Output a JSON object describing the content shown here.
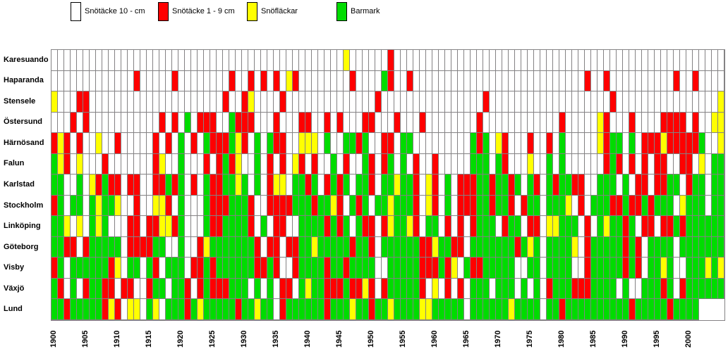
{
  "legend": [
    {
      "label": "Snötäcke 10 -  cm",
      "code": "W",
      "color": "#ffffff"
    },
    {
      "label": "Snötäcke 1 - 9 cm",
      "code": "R",
      "color": "#ff0000"
    },
    {
      "label": "Snöfläckar",
      "code": "Y",
      "color": "#ffff00"
    },
    {
      "label": "Barmark",
      "code": "G",
      "color": "#00dc00"
    }
  ],
  "chart_data": {
    "type": "heatmap",
    "title": "",
    "xlabel": "",
    "ylabel": "",
    "x_start": 1900,
    "x_end": 2005,
    "x_ticks": [
      1900,
      1905,
      1910,
      1915,
      1920,
      1925,
      1930,
      1935,
      1940,
      1945,
      1950,
      1955,
      1960,
      1965,
      1970,
      1975,
      1980,
      1985,
      1990,
      1995,
      2000
    ],
    "grid_color": "#848284",
    "colors": {
      "W": "#ffffff",
      "R": "#ff0000",
      "Y": "#ffff00",
      "G": "#00dc00"
    },
    "value_meaning": {
      "W": "Snötäcke 10 -  cm",
      "R": "Snötäcke 1 - 9 cm",
      "Y": "Snöfläckar",
      "G": "Barmark"
    },
    "categories": [
      "Karesuando",
      "Haparanda",
      "Stensele",
      "Östersund",
      "Härnösand",
      "Falun",
      "Karlstad",
      "Stockholm",
      "Linköping",
      "Göteborg",
      "Visby",
      "Växjö",
      "Lund"
    ],
    "rows": [
      {
        "station": "Karesuando",
        "cells": "WWWWWWWWWWWWWWWWWWWWWWWWWWWWWWWWWWWWWWWWWWWWWWYWWWWWWRWWWWWWWWWWWWWWWWWWWWWWWWWWWWWWWWWWWWWWWWWWWWWWWWWWW"
      },
      {
        "station": "Haparanda",
        "cells": "WWWWWWWWWWWWWWRWWWWWRWWWWWWWWRWWRWRWRWYRWWWWWWWWRWWWWGRWWRWWWWWWWWWWWWWWWWWWWWWWWWWWWRWWRWWWWWWWWWWRWWRWW"
      },
      {
        "station": "Stensele",
        "cells": "WWYWWWRRWWWWWWWWWWWWWWWWWWWWWRWWRYWWWWRWWWWWWWWWWWWWWRWWWWWWWWWWWWWWWWRWWWWWWWWWWWWWWWWWWWRWWWWWWWWWWWWWW"
      },
      {
        "station": "Östersund",
        "cells": "WWYWWWRWRWWWWWWWWWWWRWRWGWRRRWWGRRRWWWRWWWRRWWRWRWWWRRWWWRWWWRWWWWWWWWRWWWWWWWWWWWWRWWWWWYRWWWRWWWWRRRRWR"
      },
      {
        "station": "Härnösand",
        "cells": "WWYYRYRWRWWYWWRWWWWWRWRWGWRWGRRRGYRWGWGRRWWYYYWGWWGGRGWWRRWGGWWWWWWWWWGRGWYRWWWRWWRWGWWWWWYRGGWGWRRRYRRRRR"
      },
      {
        "station": "Falun",
        "cells": "GWWYGYRWYWWWRWWWWWWWRYWWGWWWRWRGRYWWGWRWRWYRWRWWGWRWWGRWRGWGWRWWRWWWWWGGGWGRWWWYWWGWGWWWWWWRGRWRWRWRRWWRRW"
      },
      {
        "station": "Karlstad",
        "cells": "YWGGGGWWGWYRGRRWRRWWRRGRGWRWGRRGGYGWGWRYYWGGRGWRGRGWGGRWGGYGGRWYRWGWRRRGGRGGRGWGRWGRGGRRWWGGGWGWRRWRRGGWRG"
      },
      {
        "station": "Stockholm",
        "cells": "GWGGRGWGGWGYGGYWWRWWYYRWGWWWGRRRGGGRWWRRRRGGGRGGYRWGRGWGGYGGGRWYRWGWRRRGGRGGRWRGGWGGGYWRWGGGRRGRRGRGGGWYGG"
      },
      {
        "station": "Linköping",
        "cells": "GWGGGGYWYWGYGWWWRRWRRYYRGWWWGRRGGGGRWGWRRWWGGGGRGRGWGRRWRYGGYRWGGWRWRWRGGGWRGGWRRWYYGGGWRWGYGGRGWRRWRRGRGG"
      },
      {
        "station": "Göteborg",
        "cells": "GGGGGGRRWRGGGGGWRRRRGGWWGWWRYGGGGGGGRWRRWRRGGYGGGGGRGGRWGGGGGGRRYGGRRWGGGGGGGRGYGWGGGGYWRGGGGGRGRWGGGGWGGG"
      },
      {
        "station": "Visby",
        "cells": "GGGGRGWGGGGGGRYWGGWGRWGGGWRRGRGGGGGGRRGRWWRGGGGRGGRGGGGWWGGGGGRRRGRYWGRRGGGGGWWGGWGGGGWWRGGGGGRGRWGGYGWWGG"
      },
      {
        "station": "Växjö",
        "cells": "GYGYGRWGWRGGRRWRRWWRGGWGGRWRGRRRGGGWGWGWRRWGYGGRRRGRRYRWRGGGGGRWYWRWRWGGGWGGGWGWGWRGGGRRRGGGGWGWWGGGRGWRGG"
      },
      {
        "station": "Lund",
        "cells": "GGGGGGRGGGGGRYRWYYWGYWGGGRGYGGGGGRGGYGGWRGGGGGGRGGGYGGRGGYGGGGYYGGGGGWGGGGGGYGGGGWGGRGGGGGGGGGGRGGGGGRGGGG"
      }
    ]
  }
}
